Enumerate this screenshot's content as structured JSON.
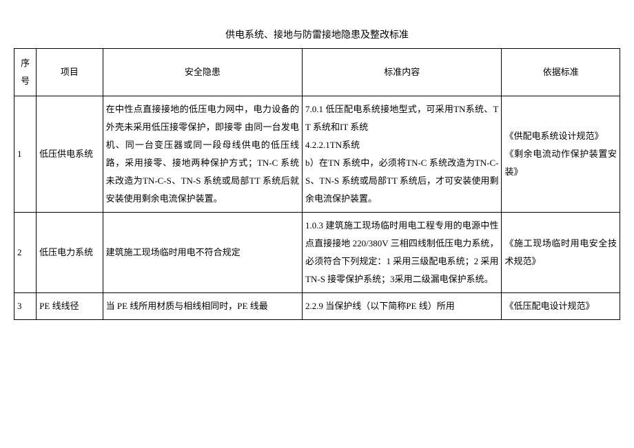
{
  "title": "供电系统、接地与防雷接地隐患及整改标准",
  "headers": {
    "seq": "序号",
    "item": "项目",
    "hazard": "安全隐患",
    "standard": "标准内容",
    "basis": "依据标准"
  },
  "rows": [
    {
      "seq": "1",
      "item": "低压供电系统",
      "hazard": "在中性点直接接地的低压电力网中，电力设备的外壳未采用低压接零保护，即接零 由同一台发电机、同一台变压器或同一段母线供电的低压线路，采用接零、接地两种保护方式；TN-C 系统未改造为TN-C-S、TN-S 系统或局部TT 系统后就安装使用剩余电流保护装置。",
      "standard": "7.0.1 低压配电系统接地型式，可采用TN系统、TT 系统和IT 系统\n4.2.2.1TN系统\nb）在TN 系统中，必须将TN-C 系统改造为TN-C-S、TN-S 系统或局部TT 系统后，才可安装使用剩余电流保护装置。",
      "basis": "《供配电系统设计规范》\n《剩余电流动作保护装置安装》"
    },
    {
      "seq": "2",
      "item": "低压电力系统",
      "hazard": "建筑施工现场临时用电不符合规定",
      "standard": "1.0.3 建筑施工现场临时用电工程专用的电源中性点直接接地 220/380V 三相四线制低压电力系统，必须符合下列规定：1 采用三级配电系统；2 采用TN-S 接零保护系统；3采用二级漏电保护系统。",
      "basis": "《施工现场临时用电安全技术规范》"
    },
    {
      "seq": "3",
      "item": "PE 线线径",
      "hazard": "当 PE 线所用材质与相线相同时，PE 线最",
      "standard": "2.2.9 当保护线（以下简称PE 线）所用",
      "basis": "《低压配电设计规范》"
    }
  ],
  "styling": {
    "background_color": "#ffffff",
    "text_color": "#000000",
    "border_color": "#000000",
    "font_family": "SimSun",
    "title_fontsize": 14,
    "body_fontsize": 13,
    "line_height": 2,
    "column_widths": {
      "seq": 30,
      "item": 90,
      "hazard": 270,
      "standard": 270,
      "basis": 160
    }
  }
}
